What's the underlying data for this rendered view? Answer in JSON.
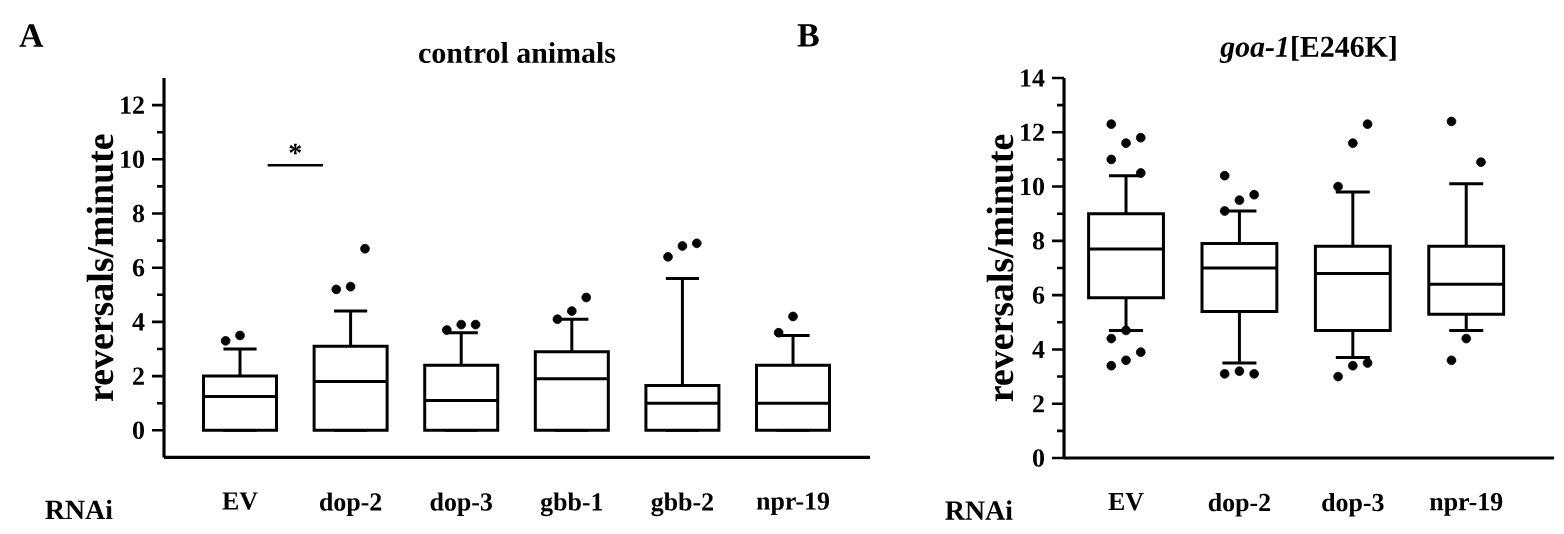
{
  "chart_data": [
    {
      "type": "box",
      "title": "control animals",
      "ylabel": "reversals/minute",
      "xlabel": "RNAi",
      "annotations": [
        "A",
        "*"
      ],
      "marker": "circle",
      "categories": [
        "EV",
        "dop-2",
        "dop-3",
        "gbb-1",
        "gbb-2",
        "npr-19"
      ],
      "ylim": [
        -1,
        13
      ],
      "yticks": [
        0,
        2,
        4,
        6,
        8,
        10,
        12
      ],
      "boxes": [
        {
          "low": 0,
          "q1": 0,
          "median": 1.25,
          "q3": 2.0,
          "high": 3.0,
          "outliers": [
            3.3,
            3.5
          ]
        },
        {
          "low": 0,
          "q1": 0,
          "median": 1.8,
          "q3": 3.1,
          "high": 4.4,
          "outliers": [
            5.2,
            5.3,
            6.7
          ]
        },
        {
          "low": 0,
          "q1": 0,
          "median": 1.1,
          "q3": 2.4,
          "high": 3.6,
          "outliers": [
            3.7,
            3.9,
            3.9
          ]
        },
        {
          "low": 0,
          "q1": 0,
          "median": 1.9,
          "q3": 2.9,
          "high": 4.1,
          "outliers": [
            4.1,
            4.4,
            4.9
          ]
        },
        {
          "low": 0,
          "q1": 0,
          "median": 1.0,
          "q3": 1.65,
          "high": 5.6,
          "outliers": [
            6.4,
            6.8,
            6.9
          ]
        },
        {
          "low": 0,
          "q1": 0,
          "median": 1.0,
          "q3": 2.4,
          "high": 3.5,
          "outliers": [
            3.6,
            4.2
          ]
        }
      ]
    },
    {
      "type": "box",
      "title": "*goa-1*[E246K]",
      "ylabel": "reversals/minute",
      "xlabel": "RNAi",
      "annotations": [
        "B"
      ],
      "marker": "circle",
      "categories": [
        "EV",
        "dop-2",
        "dop-3",
        "npr-19"
      ],
      "ylim": [
        0,
        14
      ],
      "yticks": [
        0,
        2,
        4,
        6,
        8,
        10,
        12,
        14
      ],
      "boxes": [
        {
          "low": 4.7,
          "q1": 5.9,
          "median": 7.7,
          "q3": 9.0,
          "high": 10.4,
          "outliers": [
            3.4,
            3.6,
            3.9,
            4.4,
            4.7,
            10.5,
            11.0,
            11.6,
            11.8,
            12.3
          ]
        },
        {
          "low": 3.5,
          "q1": 5.4,
          "median": 7.0,
          "q3": 7.9,
          "high": 9.1,
          "outliers": [
            3.1,
            3.2,
            3.1,
            9.1,
            9.5,
            9.7,
            10.4
          ]
        },
        {
          "low": 3.7,
          "q1": 4.7,
          "median": 6.8,
          "q3": 7.8,
          "high": 9.8,
          "outliers": [
            3.0,
            3.4,
            3.5,
            10.0,
            11.6,
            12.3
          ]
        },
        {
          "low": 4.7,
          "q1": 5.3,
          "median": 6.4,
          "q3": 7.8,
          "high": 10.1,
          "outliers": [
            3.6,
            4.4,
            10.9,
            12.4
          ]
        }
      ]
    }
  ]
}
